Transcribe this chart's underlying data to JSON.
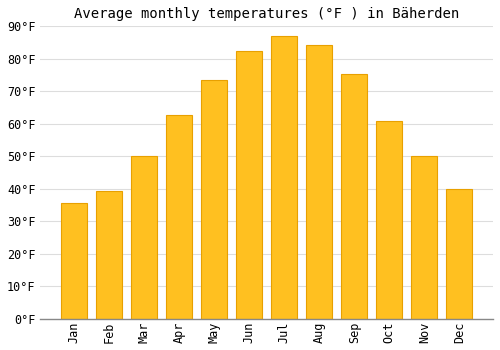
{
  "title": "Average monthly temperatures (°F ) in Bäherden",
  "months": [
    "Jan",
    "Feb",
    "Mar",
    "Apr",
    "May",
    "Jun",
    "Jul",
    "Aug",
    "Sep",
    "Oct",
    "Nov",
    "Dec"
  ],
  "values": [
    35.6,
    39.2,
    50.0,
    62.6,
    73.4,
    82.4,
    86.9,
    84.2,
    75.2,
    60.8,
    50.0,
    40.1
  ],
  "bar_color": "#FFC020",
  "bar_edge_color": "#E8A000",
  "ylim": [
    0,
    90
  ],
  "yticks": [
    0,
    10,
    20,
    30,
    40,
    50,
    60,
    70,
    80,
    90
  ],
  "ytick_labels": [
    "0°F",
    "10°F",
    "20°F",
    "30°F",
    "40°F",
    "50°F",
    "60°F",
    "70°F",
    "80°F",
    "90°F"
  ],
  "background_color": "#FFFFFF",
  "grid_color": "#DDDDDD",
  "title_fontsize": 10,
  "tick_fontsize": 8.5,
  "font_family": "monospace",
  "bar_width": 0.75
}
